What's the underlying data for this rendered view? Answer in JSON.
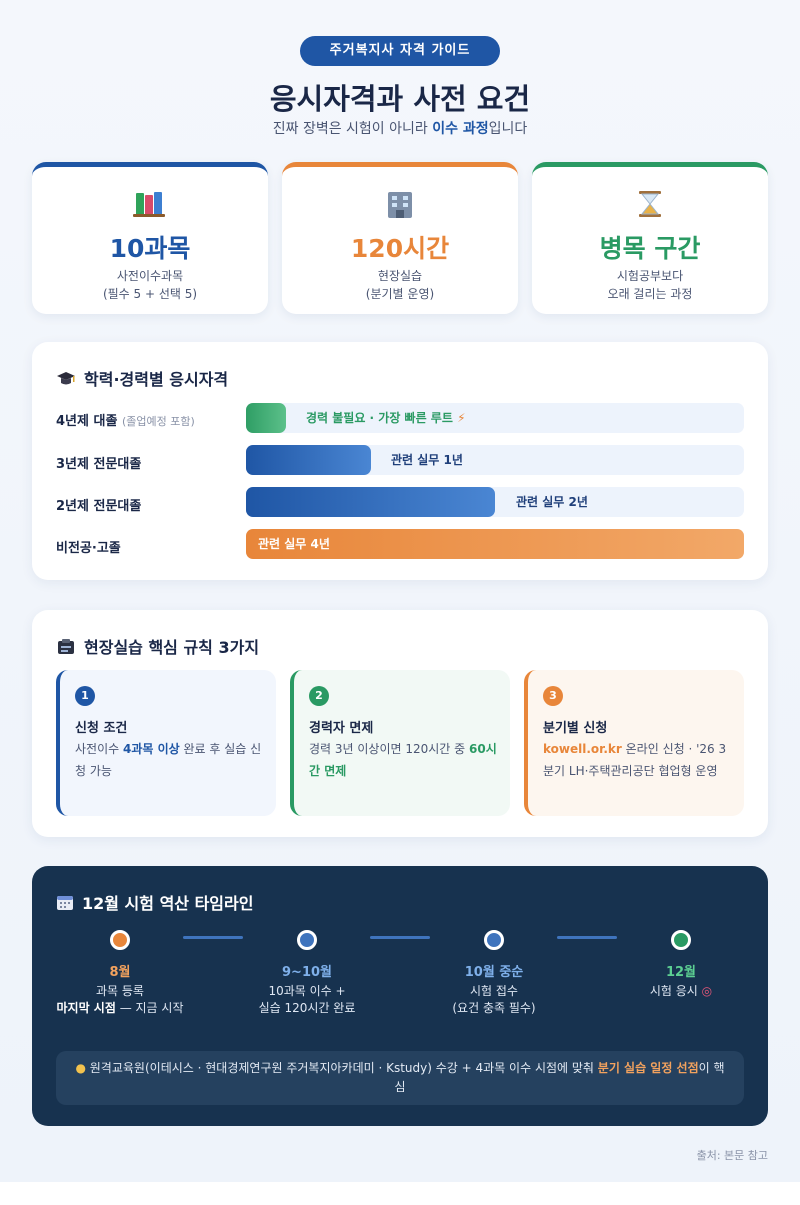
{
  "header": {
    "pill": "주거복지사 자격 가이드",
    "title": "응시자격과 사전 요건",
    "subtitle_pre": "진짜 장벽은 시험이 아니라 ",
    "subtitle_em": "이수 과정",
    "subtitle_post": "입니다"
  },
  "stats": [
    {
      "icon": "books-icon",
      "value": "10과목",
      "line1": "사전이수과목",
      "line2": "(필수 5 + 선택 5)",
      "color": "#1f56a5"
    },
    {
      "icon": "building-icon",
      "value": "120시간",
      "line1": "현장실습",
      "line2": "(분기별 운영)",
      "color": "#e8863a"
    },
    {
      "icon": "hourglass-icon",
      "value": "병목 구간",
      "line1": "시험공부보다",
      "line2": "오래 걸리는 과정",
      "color": "#2a9a63"
    }
  ],
  "eligibility": {
    "title": "학력·경력별 응시자격",
    "rows": [
      {
        "label": "4년제 대졸",
        "note": "(졸업예정 포함)",
        "bar": "경력 불필요 · 가장 빠른 루트",
        "years": 0
      },
      {
        "label": "3년제 전문대졸",
        "note": "",
        "bar": "관련 실무 1년",
        "years": 1
      },
      {
        "label": "2년제 전문대졸",
        "note": "",
        "bar": "관련 실무 2년",
        "years": 2
      },
      {
        "label": "비전공·고졸",
        "note": "",
        "bar": "관련 실무 4년",
        "years": 4
      }
    ]
  },
  "rules": {
    "title": "현장실습 핵심 규칙 3가지",
    "items": [
      {
        "num": "1",
        "title": "신청 조건",
        "pre": "사전이수 ",
        "em": "4과목 이상",
        "post": " 완료 후 실습 신청 가능"
      },
      {
        "num": "2",
        "title": "경력자 면제",
        "pre": "경력 3년 이상이면 120시간 중 ",
        "em": "60시간 면제",
        "post": ""
      },
      {
        "num": "3",
        "title": "분기별 신청",
        "pre": "",
        "em": "kowell.or.kr",
        "post": " 온라인 신청 · '26 3분기 LH·주택관리공단 협업형 운영"
      }
    ]
  },
  "timeline": {
    "title": "12월 시험 역산 타임라인",
    "steps": [
      {
        "t": "8월",
        "d1": "과목 등록",
        "d2b": "마지막 시점",
        "d2": " — 지금 시작"
      },
      {
        "t": "9~10월",
        "d1": "10과목 이수 +",
        "d2b": "",
        "d2": "실습 120시간 완료"
      },
      {
        "t": "10월 중순",
        "d1": "시험 접수",
        "d2b": "",
        "d2": "(요건 충족 필수)"
      },
      {
        "t": "12월",
        "d1": "시험 응시",
        "d2b": "",
        "d2": ""
      }
    ],
    "note_pre": "원격교육원(이테시스 · 현대경제연구원 주거복지아카데미 · Kstudy) 수강 + 4과목 이수 시점에 맞춰 ",
    "note_em": "분기 실습 일정 선점",
    "note_post": "이 핵심"
  },
  "source": "출처: 본문 참고"
}
